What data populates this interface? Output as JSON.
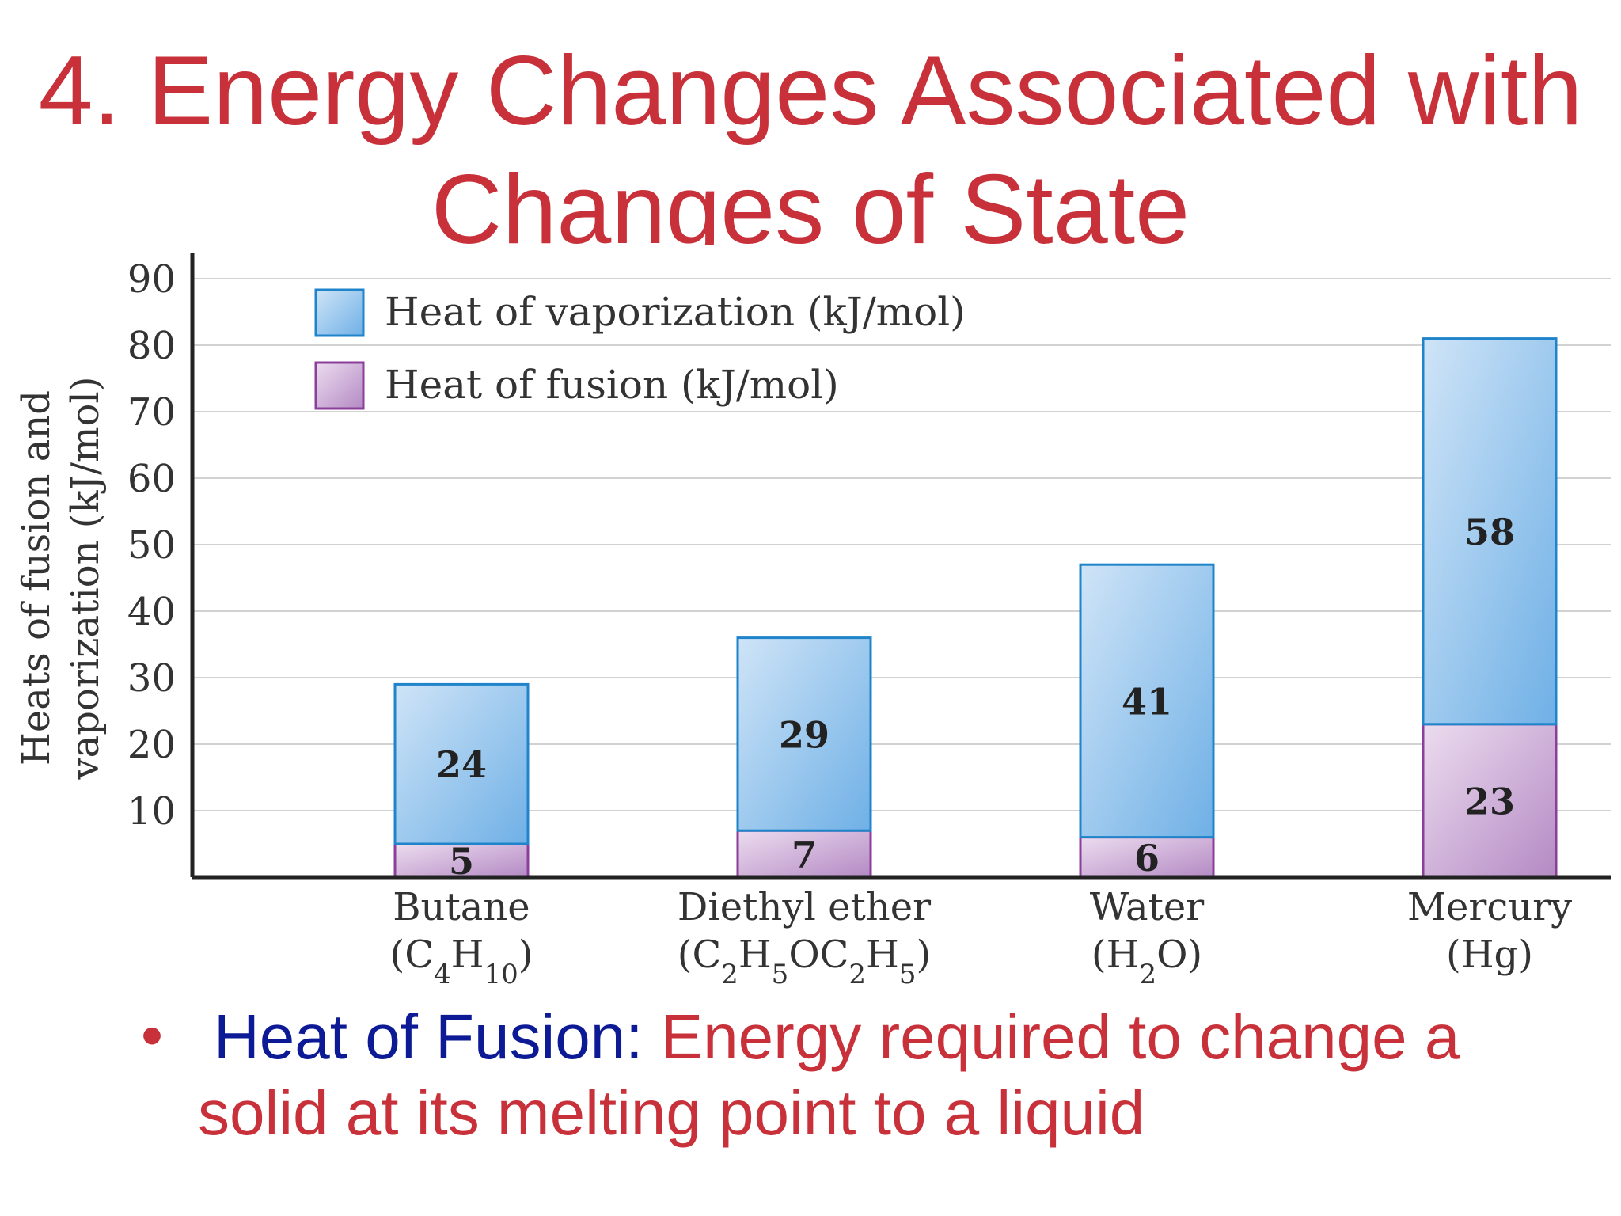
{
  "title_line1": "4. Energy Changes Associated with",
  "title_line2": "Changes of State",
  "bullet": {
    "marker": "•",
    "term": "Heat of Fusion:",
    "definition": "Energy required to change a solid at its melting point to a liquid"
  },
  "colors": {
    "title": "#c8313a",
    "term": "#0d1a96",
    "vaporization": "#8fc3ec",
    "fusion": "#cfa8d8"
  },
  "chart_data": {
    "type": "bar",
    "stacked": true,
    "ylabel_lines": [
      "Heats of fusion and",
      "vaporization (kJ/mol)"
    ],
    "ylim": [
      0,
      90
    ],
    "yticks": [
      10,
      20,
      30,
      40,
      50,
      60,
      70,
      80,
      90
    ],
    "grid": true,
    "legend_position": "top-left",
    "categories": [
      {
        "name": "Butane",
        "formula": [
          "(C",
          {
            "sub": "4"
          },
          "H",
          {
            "sub": "10"
          },
          ")"
        ]
      },
      {
        "name": "Diethyl ether",
        "formula": [
          "(C",
          {
            "sub": "2"
          },
          "H",
          {
            "sub": "5"
          },
          "OC",
          {
            "sub": "2"
          },
          "H",
          {
            "sub": "5"
          },
          ")"
        ]
      },
      {
        "name": "Water",
        "formula": [
          "(H",
          {
            "sub": "2"
          },
          "O)"
        ]
      },
      {
        "name": "Mercury",
        "formula": [
          "(Hg)"
        ]
      }
    ],
    "series": [
      {
        "name": "Heat of fusion (kJ/mol)",
        "values": [
          5,
          7,
          6,
          23
        ]
      },
      {
        "name": "Heat of vaporization (kJ/mol)",
        "values": [
          24,
          29,
          41,
          58
        ]
      }
    ]
  }
}
